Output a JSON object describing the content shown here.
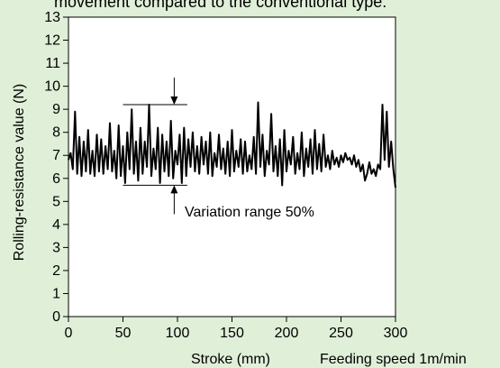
{
  "caption_fragment": "movement compared to the conventional type.",
  "colors": {
    "background": "#E0EFD8",
    "plot_background": "#FFFFFF",
    "ink": "#000000"
  },
  "chart_data": {
    "type": "line",
    "xlabel": "Stroke (mm)",
    "ylabel": "Rolling-resistance value (N)",
    "xlim": [
      0,
      300
    ],
    "ylim": [
      0,
      13
    ],
    "xticks": [
      0,
      50,
      100,
      150,
      200,
      250,
      300
    ],
    "yticks": [
      0,
      1,
      2,
      3,
      4,
      5,
      6,
      7,
      8,
      9,
      10,
      11,
      12,
      13
    ],
    "grid": false,
    "annotations": {
      "variation_range": "Variation range   50%",
      "feeding_speed": "Feeding speed 1m/min"
    },
    "variation_band": {
      "x": 97,
      "x_start": 50,
      "x_end": 109,
      "upper": 9.2,
      "lower": 5.7
    },
    "series": [
      {
        "x": [
          0,
          2,
          4,
          6,
          8,
          10,
          12,
          14,
          16,
          18,
          20,
          22,
          24,
          26,
          28,
          30,
          32,
          34,
          36,
          38,
          40,
          42,
          44,
          46,
          48,
          50,
          52,
          54,
          56,
          58,
          60,
          62,
          64,
          66,
          68,
          70,
          72,
          74,
          76,
          78,
          80,
          82,
          84,
          86,
          88,
          90,
          92,
          94,
          96,
          98,
          100,
          102,
          104,
          106,
          108,
          110,
          112,
          114,
          116,
          118,
          120,
          122,
          124,
          126,
          128,
          130,
          132,
          134,
          136,
          138,
          140,
          142,
          144,
          146,
          148,
          150,
          152,
          154,
          156,
          158,
          160,
          162,
          164,
          166,
          168,
          170,
          172,
          174,
          176,
          178,
          180,
          182,
          184,
          186,
          188,
          190,
          192,
          194,
          196,
          198,
          200,
          202,
          204,
          206,
          208,
          210,
          212,
          214,
          216,
          218,
          220,
          222,
          224,
          226,
          228,
          230,
          232,
          234,
          236,
          238,
          240,
          242,
          244,
          246,
          248,
          250,
          252,
          254,
          256,
          258,
          260,
          262,
          264,
          266,
          268,
          270,
          272,
          274,
          276,
          278,
          280,
          282,
          284,
          286,
          288,
          290,
          292,
          294,
          296,
          298,
          300
        ],
        "values": [
          6.8,
          7.1,
          6.4,
          8.9,
          6.2,
          7.8,
          6.1,
          7.6,
          6.3,
          8.1,
          6.2,
          7.2,
          6.1,
          7.9,
          6.3,
          7.7,
          6.2,
          7.4,
          6.4,
          8.4,
          6.3,
          7.2,
          6.0,
          8.3,
          6.1,
          7.4,
          5.8,
          8.0,
          6.4,
          9.0,
          6.2,
          7.6,
          5.9,
          8.2,
          6.2,
          7.6,
          6.5,
          9.2,
          6.1,
          7.3,
          6.4,
          8.2,
          5.8,
          7.9,
          6.3,
          7.6,
          6.1,
          8.5,
          6.0,
          7.2,
          6.6,
          7.9,
          5.8,
          8.2,
          6.1,
          7.7,
          6.5,
          8.0,
          6.3,
          7.4,
          6.2,
          7.8,
          6.6,
          7.6,
          6.2,
          8.0,
          6.1,
          7.1,
          6.5,
          7.9,
          6.4,
          7.3,
          6.2,
          7.6,
          6.1,
          8.1,
          6.3,
          7.2,
          6.5,
          7.7,
          6.2,
          7.6,
          6.3,
          7.0,
          6.4,
          7.8,
          6.2,
          9.3,
          6.5,
          7.9,
          6.1,
          7.2,
          6.6,
          8.8,
          6.3,
          7.4,
          6.1,
          7.7,
          5.7,
          8.1,
          6.3,
          7.2,
          6.6,
          7.8,
          6.2,
          7.1,
          6.4,
          8.0,
          6.1,
          7.3,
          6.5,
          7.7,
          6.2,
          8.1,
          6.4,
          7.5,
          6.3,
          7.9,
          6.5,
          7.0,
          6.4,
          7.2,
          6.6,
          6.9,
          6.5,
          7.0,
          6.7,
          7.1,
          6.8,
          6.9,
          6.6,
          7.0,
          6.5,
          6.8,
          6.3,
          6.6,
          5.9,
          6.2,
          6.7,
          6.2,
          6.4,
          6.1,
          6.6,
          6.4,
          9.2,
          6.8,
          8.9,
          6.5,
          7.6,
          6.4,
          5.6
        ]
      }
    ]
  }
}
